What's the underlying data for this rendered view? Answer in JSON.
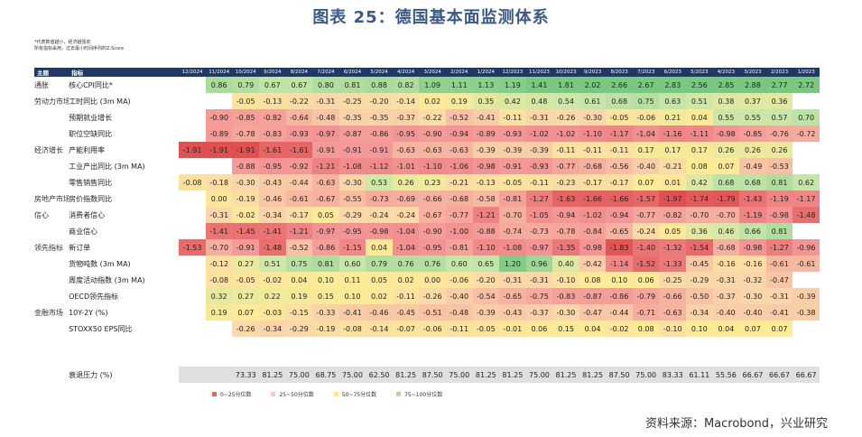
{
  "title": "图表 25：德国基本面监测体系",
  "notes": [
    "*代表数值越小，经济越强劲",
    "所有指标采用，过去最小时间序列的Z-Score"
  ],
  "colors": {
    "header_bg": "#1f3864",
    "q1": "#e06666",
    "q2": "#f4cccc",
    "q3": "#ffe599",
    "q4": "#b6d7a8"
  },
  "header": {
    "category_label": "主题",
    "indicator_label": "指标",
    "months": [
      "12/2024",
      "11/2024",
      "10/2024",
      "9/2024",
      "8/2024",
      "7/2024",
      "6/2024",
      "5/2024",
      "4/2024",
      "3/2024",
      "2/2024",
      "1/2024",
      "12/2023",
      "11/2023",
      "10/2023",
      "9/2023",
      "8/2023",
      "7/2023",
      "6/2023",
      "5/2023",
      "4/2023",
      "3/2023",
      "2/2023",
      "1/2023"
    ]
  },
  "rows": [
    {
      "category": "通胀",
      "indicator": "核心CPI同比*",
      "values": [
        "",
        "0.86",
        "0.79",
        "0.67",
        "0.67",
        "0.80",
        "0.81",
        "0.88",
        "0.82",
        "1.09",
        "1.11",
        "1.13",
        "1.19",
        "1.41",
        "1.81",
        "2.02",
        "2.66",
        "2.67",
        "2.83",
        "2.56",
        "2.85",
        "2.88",
        "2.77",
        "2.72"
      ]
    },
    {
      "category": "劳动力市场",
      "indicator": "工时同比 (3m MA)",
      "values": [
        "",
        "",
        "-0.05",
        "-0.13",
        "-0.22",
        "-0.31",
        "-0.25",
        "-0.20",
        "-0.14",
        "0.02",
        "0.19",
        "0.35",
        "0.42",
        "0.48",
        "0.54",
        "0.61",
        "0.68",
        "0.75",
        "0.63",
        "0.51",
        "0.38",
        "0.37",
        "0.36",
        ""
      ]
    },
    {
      "category": "",
      "indicator": "预期就业增长",
      "values": [
        "",
        "-0.90",
        "-0.85",
        "-0.82",
        "-0.64",
        "-0.48",
        "-0.35",
        "-0.35",
        "-0.37",
        "-0.22",
        "-0.52",
        "-0.41",
        "-0.11",
        "-0.31",
        "-0.26",
        "-0.30",
        "-0.05",
        "-0.06",
        "0.21",
        "0.04",
        "0.55",
        "0.55",
        "0.57",
        "0.70"
      ]
    },
    {
      "category": "",
      "indicator": "职位空缺同比",
      "values": [
        "",
        "-0.89",
        "-0.78",
        "-0.83",
        "-0.93",
        "-0.97",
        "-0.87",
        "-0.86",
        "-0.95",
        "-0.90",
        "-0.94",
        "-0.89",
        "-0.93",
        "-1.02",
        "-1.02",
        "-1.10",
        "-1.17",
        "-1.04",
        "-1.16",
        "-1.11",
        "-0.98",
        "-0.85",
        "-0.76",
        "-0.72"
      ]
    },
    {
      "category": "经济增长",
      "indicator": "产能利用率",
      "values": [
        "-1.91",
        "-1.91",
        "-1.91",
        "-1.61",
        "-1.61",
        "-0.91",
        "-0.91",
        "-0.91",
        "-0.63",
        "-0.63",
        "-0.63",
        "-0.39",
        "-0.39",
        "-0.39",
        "-0.11",
        "-0.11",
        "-0.11",
        "0.17",
        "0.17",
        "0.17",
        "0.26",
        "0.26",
        "0.26",
        ""
      ]
    },
    {
      "category": "",
      "indicator": "工业产出同比 (3m MA)",
      "values": [
        "",
        "",
        "-0.88",
        "-0.95",
        "-0.92",
        "-1.21",
        "-1.08",
        "-1.12",
        "-1.01",
        "-1.10",
        "-1.06",
        "-0.98",
        "-0.91",
        "-0.93",
        "-0.77",
        "-0.68",
        "-0.56",
        "-0.40",
        "-0.21",
        "0.08",
        "0.07",
        "-0.49",
        "-0.53",
        ""
      ]
    },
    {
      "category": "",
      "indicator": "零售销售同比",
      "values": [
        "-0.08",
        "-0.18",
        "-0.30",
        "-0.43",
        "-0.44",
        "-0.63",
        "-0.30",
        "0.53",
        "0.26",
        "0.23",
        "-0.21",
        "-0.13",
        "-0.05",
        "-0.11",
        "-0.23",
        "-0.17",
        "-0.17",
        "0.07",
        "0.01",
        "0.42",
        "0.68",
        "0.68",
        "0.81",
        "0.62"
      ]
    },
    {
      "category": "房地产市场",
      "indicator": "房价指数同比",
      "values": [
        "",
        "0.00",
        "-0.19",
        "-0.46",
        "-0.61",
        "-0.67",
        "-0.55",
        "-0.73",
        "-0.69",
        "-0.66",
        "-0.68",
        "-0.58",
        "-0.81",
        "-1.27",
        "-1.63",
        "-1.66",
        "-1.66",
        "-1.57",
        "-1.97",
        "-1.74",
        "-1.79",
        "-1.43",
        "-1.19",
        "-1.17"
      ]
    },
    {
      "category": "信心",
      "indicator": "消费者信心",
      "values": [
        "",
        "-0.31",
        "-0.02",
        "-0.34",
        "-0.17",
        "0.05",
        "-0.29",
        "-0.24",
        "-0.24",
        "-0.67",
        "-0.77",
        "-1.21",
        "-0.70",
        "-1.05",
        "-0.94",
        "-1.02",
        "-0.94",
        "-0.77",
        "-0.82",
        "-0.70",
        "-0.70",
        "-1.19",
        "-0.98",
        "-1.48"
      ]
    },
    {
      "category": "",
      "indicator": "商业信心",
      "values": [
        "",
        "-1.41",
        "-1.45",
        "-1.41",
        "-1.21",
        "-0.97",
        "-0.95",
        "-0.98",
        "-1.04",
        "-0.90",
        "-1.00",
        "-0.88",
        "-0.74",
        "-0.73",
        "-0.78",
        "-0.84",
        "-0.65",
        "-0.24",
        "0.05",
        "0.36",
        "0.46",
        "0.66",
        "0.81",
        ""
      ]
    },
    {
      "category": "领先指标",
      "indicator": "新订单",
      "values": [
        "-1.53",
        "-0.70",
        "-0.91",
        "-1.48",
        "-0.52",
        "-0.86",
        "-1.15",
        "0.04",
        "-1.04",
        "-0.95",
        "-0.81",
        "-1.10",
        "-1.08",
        "-0.97",
        "-1.35",
        "-0.98",
        "-1.83",
        "-1.40",
        "-1.32",
        "-1.54",
        "-0.68",
        "-0.98",
        "-1.27",
        "-0.96"
      ]
    },
    {
      "category": "",
      "indicator": "货物吨数 (3m MA)",
      "values": [
        "",
        "-0.12",
        "0.27",
        "0.51",
        "0.75",
        "0.81",
        "0.60",
        "0.79",
        "0.76",
        "0.76",
        "0.60",
        "0.65",
        "1.20",
        "0.96",
        "0.40",
        "-0.42",
        "-1.14",
        "-1.52",
        "-1.33",
        "-0.45",
        "-0.16",
        "-0.16",
        "-0.61",
        "-0.61"
      ]
    },
    {
      "category": "",
      "indicator": "周度活动指数 (3m MA)",
      "values": [
        "",
        "-0.08",
        "-0.05",
        "-0.02",
        "0.04",
        "0.10",
        "0.11",
        "0.05",
        "0.02",
        "0.00",
        "-0.06",
        "-0.20",
        "-0.31",
        "-0.31",
        "-0.10",
        "0.08",
        "0.10",
        "0.06",
        "-0.25",
        "-0.29",
        "-0.31",
        "-0.32",
        "-0.47",
        ""
      ]
    },
    {
      "category": "",
      "indicator": "OECD领先指标",
      "values": [
        "",
        "0.32",
        "0.27",
        "0.22",
        "0.19",
        "0.15",
        "0.10",
        "0.02",
        "-0.11",
        "-0.26",
        "-0.40",
        "-0.54",
        "-0.65",
        "-0.75",
        "-0.83",
        "-0.87",
        "-0.86",
        "-0.79",
        "-0.66",
        "-0.50",
        "-0.37",
        "-0.30",
        "-0.31",
        "-0.39"
      ]
    },
    {
      "category": "金融市场",
      "indicator": "10Y-2Y (%)",
      "values": [
        "",
        "0.19",
        "0.07",
        "-0.03",
        "-0.15",
        "-0.33",
        "-0.41",
        "-0.46",
        "-0.45",
        "-0.51",
        "-0.48",
        "-0.39",
        "-0.43",
        "-0.37",
        "-0.30",
        "-0.47",
        "-0.44",
        "-0.71",
        "-0.63",
        "-0.34",
        "-0.40",
        "-0.40",
        "-0.41",
        "-0.38"
      ]
    },
    {
      "category": "",
      "indicator": "STOXX50 EPS同比",
      "values": [
        "",
        "",
        "-0.26",
        "-0.34",
        "-0.29",
        "-0.19",
        "-0.08",
        "-0.14",
        "-0.07",
        "-0.06",
        "-0.11",
        "-0.05",
        "-0.01",
        "0.06",
        "0.15",
        "0.04",
        "-0.02",
        "0.08",
        "-0.10",
        "0.10",
        "0.04",
        "0.07",
        "0.07",
        ""
      ]
    }
  ],
  "pressure": {
    "label": "衰退压力 (%)",
    "values": [
      "",
      "",
      "73.33",
      "81.25",
      "75.00",
      "68.75",
      "75.00",
      "62.50",
      "81.25",
      "87.50",
      "75.00",
      "81.25",
      "81.25",
      "75.00",
      "81.25",
      "81.25",
      "87.50",
      "75.00",
      "83.33",
      "61.11",
      "55.56",
      "66.67",
      "66.67",
      "66.67"
    ]
  },
  "legend": [
    {
      "label": "0~25分位数",
      "color": "#e06666"
    },
    {
      "label": "25~50分位数",
      "color": "#f4cccc"
    },
    {
      "label": "50~75分位数",
      "color": "#ffe599"
    },
    {
      "label": "75~100分位数",
      "color": "#b6d7a8"
    }
  ],
  "source": "资料来源：Macrobond，兴业研究"
}
